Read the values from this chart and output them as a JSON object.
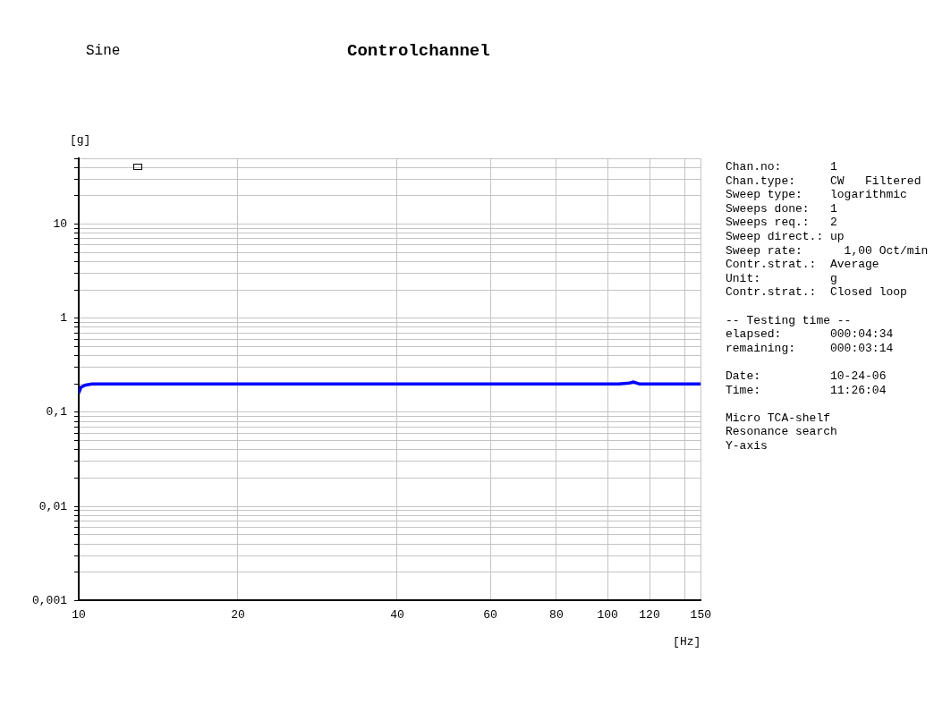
{
  "chart_data": {
    "type": "line",
    "title": "Controlchannel",
    "subtitle": "Sine",
    "xlabel": "[Hz]",
    "ylabel": "[g]",
    "log": "xy",
    "grid": true,
    "legend": false,
    "marker": "none",
    "line_style": "solid",
    "xlim": [
      10,
      150
    ],
    "ylim": [
      0.001,
      50
    ],
    "xticks": [
      10,
      20,
      40,
      60,
      80,
      100,
      120,
      {
        "value": 140,
        "label": null
      },
      150
    ],
    "yticks": [
      {
        "value": 0.001,
        "label": "0,001"
      },
      {
        "value": 0.002,
        "label": null
      },
      {
        "value": 0.003,
        "label": null
      },
      {
        "value": 0.004,
        "label": null
      },
      {
        "value": 0.005,
        "label": null
      },
      {
        "value": 0.006,
        "label": null
      },
      {
        "value": 0.007,
        "label": null
      },
      {
        "value": 0.008,
        "label": null
      },
      {
        "value": 0.009,
        "label": null
      },
      {
        "value": 0.01,
        "label": "0,01"
      },
      {
        "value": 0.02,
        "label": null
      },
      {
        "value": 0.03,
        "label": null
      },
      {
        "value": 0.04,
        "label": null
      },
      {
        "value": 0.05,
        "label": null
      },
      {
        "value": 0.06,
        "label": null
      },
      {
        "value": 0.07,
        "label": null
      },
      {
        "value": 0.08,
        "label": null
      },
      {
        "value": 0.09,
        "label": null
      },
      {
        "value": 0.1,
        "label": "0,1"
      },
      {
        "value": 0.2,
        "label": null
      },
      {
        "value": 0.3,
        "label": null
      },
      {
        "value": 0.4,
        "label": null
      },
      {
        "value": 0.5,
        "label": null
      },
      {
        "value": 0.6,
        "label": null
      },
      {
        "value": 0.7,
        "label": null
      },
      {
        "value": 0.8,
        "label": null
      },
      {
        "value": 0.9,
        "label": null
      },
      1,
      {
        "value": 2,
        "label": null
      },
      {
        "value": 3,
        "label": null
      },
      {
        "value": 4,
        "label": null
      },
      {
        "value": 5,
        "label": null
      },
      {
        "value": 6,
        "label": null
      },
      {
        "value": 7,
        "label": null
      },
      {
        "value": 8,
        "label": null
      },
      {
        "value": 9,
        "label": null
      },
      10,
      {
        "value": 20,
        "label": null
      },
      {
        "value": 30,
        "label": null
      },
      {
        "value": 40,
        "label": null
      },
      {
        "value": 50,
        "label": null
      }
    ],
    "series": [
      {
        "color": "#0000ff",
        "x": [
          10,
          10.1,
          10.3,
          10.6,
          11,
          15,
          20,
          30,
          40,
          50,
          60,
          70,
          80,
          90,
          100,
          105,
          110,
          112,
          115,
          120,
          130,
          140,
          150
        ],
        "values": [
          0.16,
          0.185,
          0.195,
          0.2,
          0.2,
          0.2,
          0.2,
          0.2,
          0.2,
          0.2,
          0.2,
          0.2,
          0.2,
          0.2,
          0.2,
          0.2,
          0.205,
          0.21,
          0.2,
          0.2,
          0.2,
          0.2,
          0.2
        ]
      }
    ],
    "annotations": [
      "Chan.no:       1\nChan.type:     CW   Filtered\nSweep type:    logarithmic\nSweeps done:   1\nSweeps req.:   2\nSweep direct.: up\nSweep rate:      1,00 Oct/min\nContr.strat.:  Average\nUnit:          g\nContr.strat.:  Closed loop",
      "-- Testing time --\nelapsed:       000:04:34\nremaining:     000:03:14",
      "Date:          10-24-06\nTime:          11:26:04",
      "Micro TCA-shelf\nResonance search\nY-axis"
    ]
  }
}
